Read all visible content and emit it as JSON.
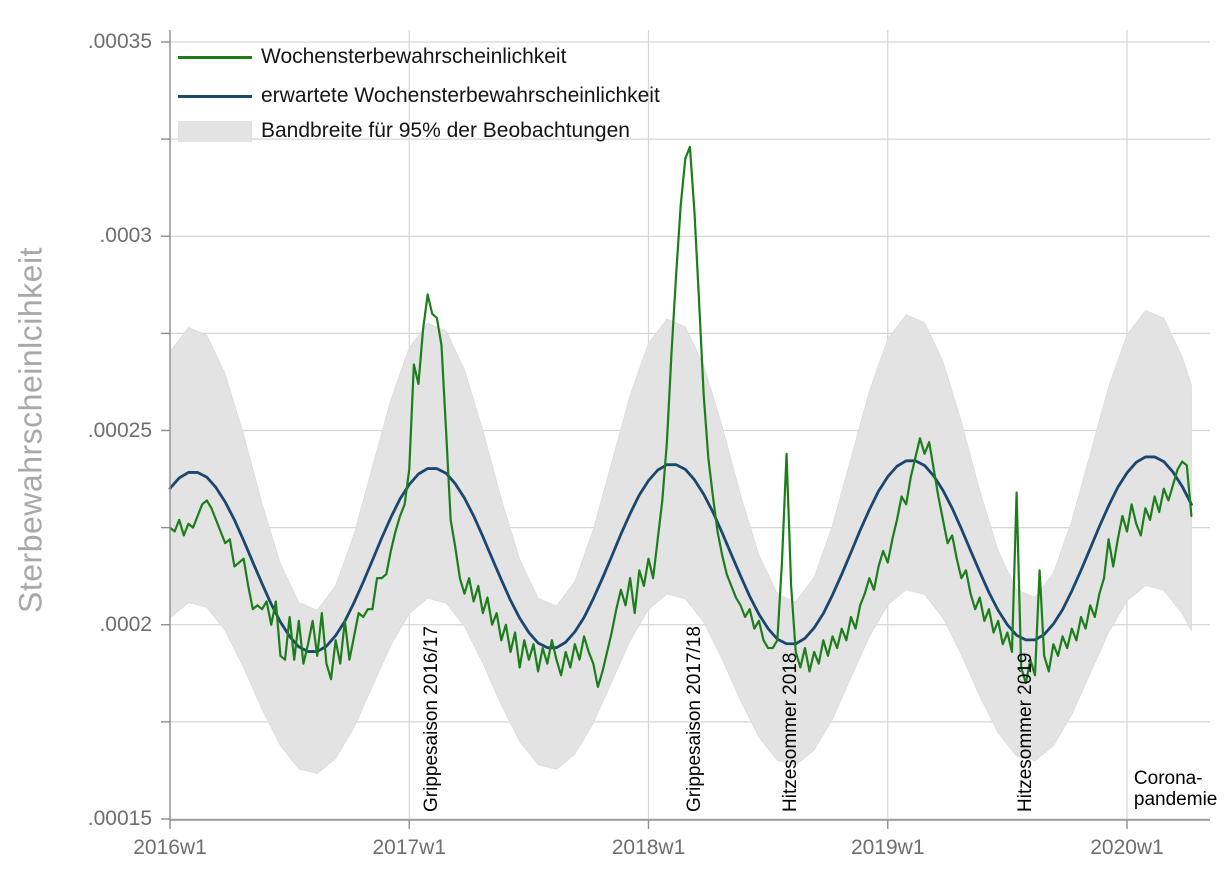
{
  "colors": {
    "observed": "#1b7e1b",
    "expected": "#1a476f",
    "band": "#e3e3e3",
    "band_edge": "#dadada",
    "grid": "#d6d6d6",
    "axis": "#8f8f8f",
    "tick_label": "#6e6e6e",
    "axis_title": "#a8a8a8",
    "annotation": "#000000",
    "legend_text": "#141414"
  },
  "chart_data": {
    "type": "line",
    "title": "",
    "xlabel": "",
    "ylabel": "Sterbewahrscheinlcihkeit",
    "values_scale": 1e-06,
    "ylim": [
      0.00015,
      0.00035
    ],
    "x_unit": "calendar week (52 weeks per year), week 0 = 2016w1, data ends 2020w15",
    "grid": true,
    "legend_position": "top-left",
    "y_axis": {
      "title": "Sterbewahrscheinlcihkeit",
      "tick_values": [
        150,
        200,
        250,
        300,
        350
      ],
      "tick_labels": [
        ".00015",
        ".0002",
        ".00025",
        ".0003",
        ".00035"
      ],
      "grid_values": [
        150,
        175,
        200,
        225,
        250,
        275,
        300,
        325,
        350
      ]
    },
    "x_axis": {
      "tick_weeks": [
        0,
        52,
        104,
        156,
        208
      ],
      "tick_labels": [
        "2016w1",
        "2017w1",
        "2018w1",
        "2019w1",
        "2020w1"
      ]
    },
    "legend": {
      "items": [
        {
          "label": "Wochensterbewahrscheinlichkeit",
          "swatch": "line",
          "color": "observed"
        },
        {
          "label": "erwartete Wochensterbewahrscheinlichkeit",
          "swatch": "line",
          "color": "expected"
        },
        {
          "label": "Bandbreite für 95% der Beobachtungen",
          "swatch": "rect",
          "color": "band"
        }
      ]
    },
    "annotations": [
      {
        "text": "Grippesaison 2016/17",
        "week": 57,
        "rotated": true
      },
      {
        "text": "Grippesaison 2017/18",
        "week": 114,
        "rotated": true
      },
      {
        "text": "Hitzesommer 2018",
        "week": 135,
        "rotated": true
      },
      {
        "text": "Hitzesommer 2019",
        "week": 186,
        "rotated": true
      },
      {
        "line1": "Corona-",
        "line2": "pandemie",
        "week": 209.5,
        "rotated": false
      }
    ],
    "series": [
      {
        "name": "Wochensterbewahrscheinlichkeit",
        "color": "observed",
        "step_weeks": 1,
        "values": [
          225,
          224,
          227,
          223,
          226,
          225,
          228,
          231,
          232,
          230,
          227,
          224,
          221,
          222,
          215,
          216,
          217,
          210,
          204,
          205,
          204,
          206,
          200,
          206,
          192,
          191,
          202,
          191,
          201,
          190,
          195,
          201,
          192,
          203,
          190,
          186,
          196,
          190,
          201,
          191,
          197,
          203,
          202,
          204,
          204,
          212,
          212,
          213,
          219,
          224,
          228,
          231,
          240,
          267,
          262,
          276,
          285,
          280,
          279,
          272,
          250,
          227,
          220,
          212,
          208,
          212,
          206,
          210,
          203,
          207,
          200,
          203,
          196,
          200,
          193,
          198,
          189,
          196,
          191,
          195,
          188,
          194,
          190,
          196,
          191,
          187,
          193,
          189,
          195,
          191,
          197,
          193,
          190,
          184,
          188,
          193,
          198,
          204,
          209,
          205,
          212,
          203,
          214,
          210,
          217,
          212,
          222,
          232,
          247,
          270,
          290,
          308,
          320,
          323,
          306,
          283,
          259,
          243,
          233,
          224,
          218,
          213,
          210,
          207,
          205,
          202,
          204,
          199,
          201,
          196,
          194,
          194,
          196,
          216,
          244,
          210,
          193,
          189,
          194,
          188,
          193,
          190,
          196,
          192,
          197,
          194,
          199,
          196,
          202,
          199,
          205,
          208,
          212,
          209,
          215,
          219,
          216,
          222,
          227,
          233,
          231,
          238,
          243,
          248,
          244,
          247,
          240,
          233,
          227,
          221,
          223,
          217,
          212,
          214,
          208,
          204,
          207,
          201,
          204,
          198,
          201,
          195,
          198,
          193,
          234,
          189,
          185,
          191,
          187,
          214,
          192,
          188,
          195,
          192,
          197,
          194,
          199,
          196,
          202,
          199,
          205,
          202,
          208,
          212,
          222,
          215,
          222,
          228,
          224,
          231,
          226,
          223,
          230,
          227,
          233,
          229,
          235,
          232,
          236,
          240,
          242,
          241,
          228
        ]
      },
      {
        "name": "erwartete Wochensterbewahrscheinlichkeit",
        "color": "expected",
        "step_weeks": 2,
        "values": [
          235.1,
          237.8,
          239.2,
          239.2,
          238.0,
          235.3,
          231.6,
          227.0,
          221.7,
          216.1,
          210.6,
          205.3,
          200.7,
          197.0,
          194.3,
          193.1,
          193.1,
          194.5,
          197.2,
          200.9,
          205.7,
          211.0,
          216.6,
          222.3,
          227.6,
          232.4,
          236.1,
          238.8,
          240.2,
          240.2,
          239.0,
          236.3,
          232.6,
          228.0,
          222.7,
          217.1,
          211.6,
          206.3,
          201.7,
          198.0,
          195.3,
          194.1,
          194.1,
          195.5,
          198.2,
          201.9,
          206.7,
          212.0,
          217.6,
          223.3,
          228.6,
          233.4,
          237.1,
          239.8,
          241.2,
          241.2,
          240.0,
          237.3,
          233.6,
          229.0,
          223.7,
          218.1,
          212.6,
          207.3,
          202.7,
          199.0,
          196.3,
          195.1,
          195.1,
          196.5,
          199.2,
          202.9,
          207.7,
          213.0,
          218.6,
          224.3,
          229.6,
          234.4,
          238.1,
          240.8,
          242.2,
          242.2,
          241.0,
          238.3,
          234.6,
          230.0,
          224.7,
          219.1,
          213.6,
          208.3,
          203.7,
          200.0,
          197.3,
          196.1,
          196.1,
          197.5,
          200.2,
          203.9,
          208.7,
          214.0,
          219.6,
          225.3,
          230.6,
          235.4,
          239.1,
          241.8,
          243.2,
          243.2,
          242.0,
          239.3,
          235.6,
          231.0
        ]
      }
    ],
    "band": {
      "name": "Bandbreite für 95% der Beobachtungen",
      "color": "band",
      "step_weeks": 4,
      "end_week": 222,
      "upper": [
        270.2,
        276.5,
        274.5,
        264.5,
        248.9,
        231.2,
        215.7,
        205.7,
        203.7,
        210.0,
        223.3,
        240.6,
        257.9,
        271.3,
        277.6,
        275.6,
        265.6,
        250.0,
        232.3,
        216.8,
        206.8,
        204.8,
        211.1,
        224.5,
        241.7,
        259.0,
        272.4,
        278.7,
        276.7,
        266.7,
        251.1,
        233.4,
        217.9,
        207.9,
        205.9,
        212.2,
        225.6,
        242.8,
        260.1,
        273.5,
        279.8,
        277.8,
        267.8,
        252.2,
        234.5,
        219.0,
        209.0,
        207.0,
        213.3,
        226.7,
        243.9,
        261.2,
        274.6,
        280.9,
        278.9,
        268.9,
        261.6
      ],
      "lower": [
        201.8,
        205.7,
        204.5,
        198.5,
        189.0,
        178.3,
        168.9,
        162.9,
        161.7,
        165.6,
        173.6,
        184.2,
        194.8,
        202.9,
        206.8,
        205.6,
        199.6,
        190.1,
        179.4,
        170.0,
        164.0,
        162.8,
        166.7,
        174.7,
        185.3,
        195.9,
        204.0,
        207.9,
        206.7,
        200.7,
        191.2,
        180.5,
        171.1,
        165.1,
        163.9,
        167.8,
        175.8,
        186.4,
        197.0,
        205.1,
        209.0,
        207.8,
        201.8,
        192.3,
        181.6,
        172.2,
        166.2,
        165.0,
        168.9,
        176.9,
        187.5,
        198.1,
        206.2,
        210.1,
        208.9,
        202.9,
        198.5
      ]
    }
  }
}
